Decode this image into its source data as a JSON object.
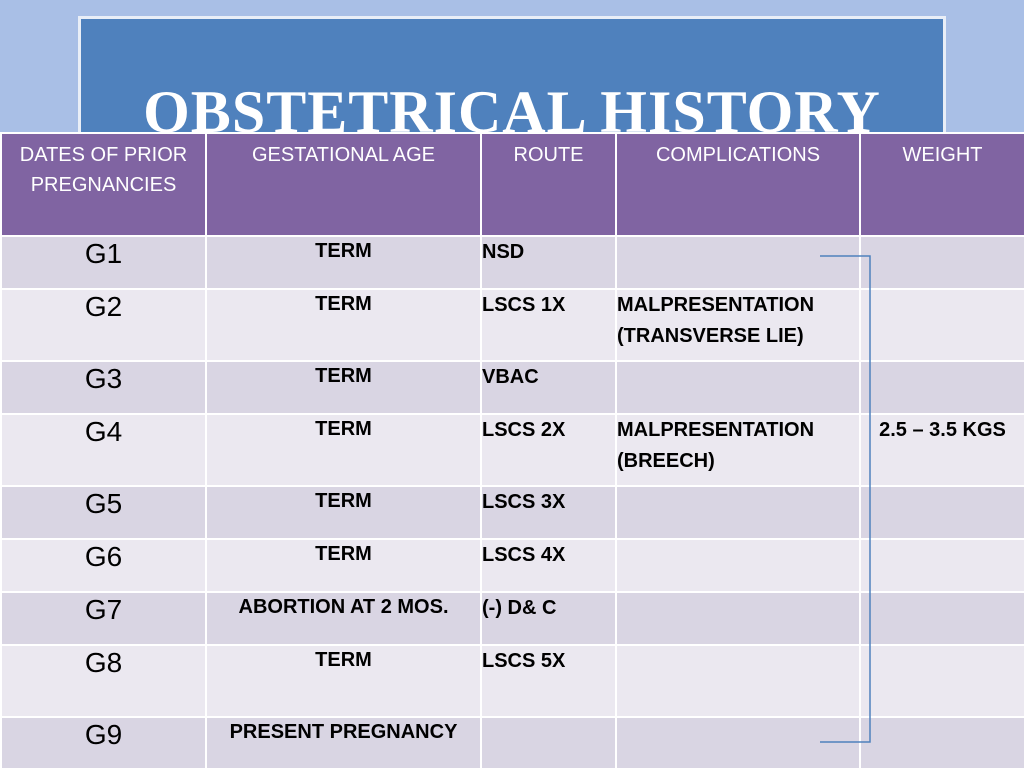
{
  "title": "OBSTETRICAL HISTORY",
  "columns": [
    "DATES OF PRIOR PREGNANCIES",
    "GESTATIONAL AGE",
    "ROUTE",
    "COMPLICATIONS",
    "WEIGHT"
  ],
  "rows": [
    {
      "g": "G1",
      "ga": "TERM",
      "route": "NSD",
      "comp": "",
      "weight": ""
    },
    {
      "g": "G2",
      "ga": "TERM",
      "route": "LSCS 1X",
      "comp": "MALPRESENTATION (TRANSVERSE LIE)",
      "weight": ""
    },
    {
      "g": "G3",
      "ga": "TERM",
      "route": "VBAC",
      "comp": "",
      "weight": ""
    },
    {
      "g": "G4",
      "ga": "TERM",
      "route": "LSCS 2X",
      "comp": "MALPRESENTATION (BREECH)",
      "weight": "2.5 – 3.5 KGS"
    },
    {
      "g": "G5",
      "ga": "TERM",
      "route": "LSCS 3X",
      "comp": "",
      "weight": ""
    },
    {
      "g": "G6",
      "ga": "TERM",
      "route": "LSCS 4X",
      "comp": "",
      "weight": ""
    },
    {
      "g": "G7",
      "ga": "ABORTION AT 2 MOS.",
      "route": "(-) D& C",
      "comp": "",
      "weight": ""
    },
    {
      "g": "G8",
      "ga": "TERM",
      "route": "LSCS 5X",
      "comp": "",
      "weight": ""
    },
    {
      "g": "G9",
      "ga": "PRESENT PREGNANCY",
      "route": "",
      "comp": "",
      "weight": ""
    }
  ],
  "colors": {
    "background": "#a9bfe6",
    "title_box": "#4f81bd",
    "header": "#8064a2",
    "row_dark": "#d9d5e3",
    "row_light": "#ebe8f0",
    "bracket": "#4f81bd"
  }
}
